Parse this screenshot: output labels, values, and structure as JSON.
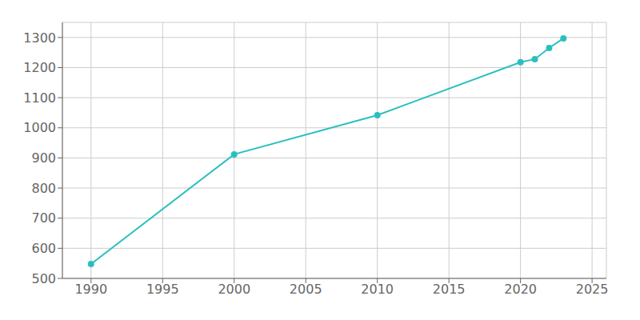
{
  "chart_data": {
    "type": "line",
    "x": [
      1990,
      2000,
      2010,
      2020,
      2021,
      2022,
      2023
    ],
    "values": [
      548,
      912,
      1042,
      1218,
      1228,
      1265,
      1297
    ],
    "color": "#2abfbf",
    "marker": "circle",
    "xlim": [
      1988,
      2026
    ],
    "ylim": [
      500,
      1350
    ],
    "xticks": [
      1990,
      1995,
      2000,
      2005,
      2010,
      2015,
      2020,
      2025
    ],
    "yticks": [
      500,
      600,
      700,
      800,
      900,
      1000,
      1100,
      1200,
      1300
    ],
    "grid": true
  }
}
